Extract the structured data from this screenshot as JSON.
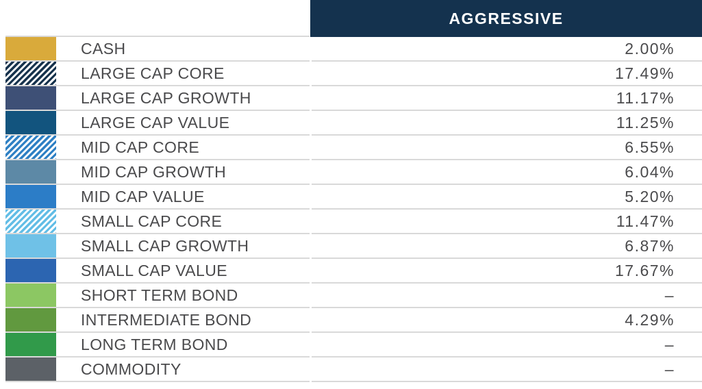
{
  "chart_data": {
    "type": "table",
    "title": "AGGRESSIVE",
    "columns": [
      "asset_class",
      "allocation"
    ],
    "empty_display": "–",
    "rows": [
      {
        "label": "CASH",
        "display": "2.00%",
        "value_pct": 2.0,
        "swatch_pattern": "solid",
        "swatch_color": "#d9aa3b"
      },
      {
        "label": "LARGE CAP CORE",
        "display": "17.49%",
        "value_pct": 17.49,
        "swatch_pattern": "striped",
        "swatch_color": "#17334d"
      },
      {
        "label": "LARGE CAP GROWTH",
        "display": "11.17%",
        "value_pct": 11.17,
        "swatch_pattern": "solid",
        "swatch_color": "#3e5076"
      },
      {
        "label": "LARGE CAP VALUE",
        "display": "11.25%",
        "value_pct": 11.25,
        "swatch_pattern": "solid",
        "swatch_color": "#12547e"
      },
      {
        "label": "MID CAP CORE",
        "display": "6.55%",
        "value_pct": 6.55,
        "swatch_pattern": "striped",
        "swatch_color": "#2e80c4"
      },
      {
        "label": "MID CAP GROWTH",
        "display": "6.04%",
        "value_pct": 6.04,
        "swatch_pattern": "solid",
        "swatch_color": "#5d89a6"
      },
      {
        "label": "MID CAP VALUE",
        "display": "5.20%",
        "value_pct": 5.2,
        "swatch_pattern": "solid",
        "swatch_color": "#2c7dc7"
      },
      {
        "label": "SMALL CAP CORE",
        "display": "11.47%",
        "value_pct": 11.47,
        "swatch_pattern": "striped",
        "swatch_color": "#62bde6"
      },
      {
        "label": "SMALL CAP GROWTH",
        "display": "6.87%",
        "value_pct": 6.87,
        "swatch_pattern": "solid",
        "swatch_color": "#6fc1e7"
      },
      {
        "label": "SMALL CAP VALUE",
        "display": "17.67%",
        "value_pct": 17.67,
        "swatch_pattern": "solid",
        "swatch_color": "#2c65b1"
      },
      {
        "label": "SHORT TERM BOND",
        "display": "–",
        "value_pct": null,
        "swatch_pattern": "solid",
        "swatch_color": "#8cc763"
      },
      {
        "label": "INTERMEDIATE BOND",
        "display": "4.29%",
        "value_pct": 4.29,
        "swatch_pattern": "solid",
        "swatch_color": "#61993f"
      },
      {
        "label": "LONG TERM BOND",
        "display": "–",
        "value_pct": null,
        "swatch_pattern": "solid",
        "swatch_color": "#319a4a"
      },
      {
        "label": "COMMODITY",
        "display": "–",
        "value_pct": null,
        "swatch_pattern": "solid",
        "swatch_color": "#5c6167"
      }
    ]
  },
  "style": {
    "header_bg_color": "#14324e",
    "header_text_color": "#ffffff",
    "border_color": "#d9d9d9",
    "row_text_color": "#4a4a4c",
    "stripe_background": "#ffffff"
  }
}
